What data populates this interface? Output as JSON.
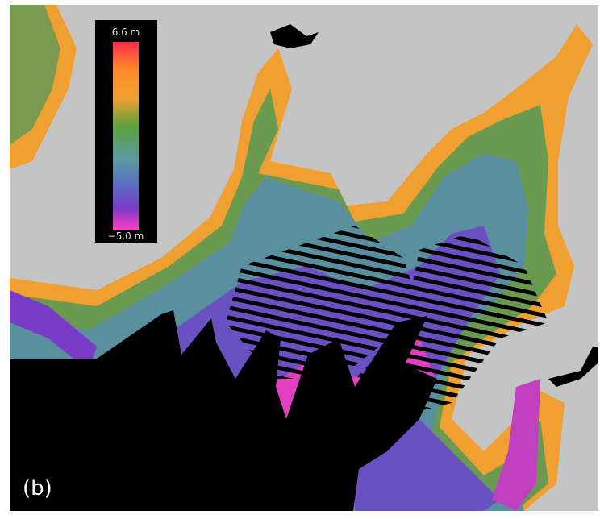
{
  "colorbar": {
    "max_label": "6.6 m",
    "min_label": "−5.0 m"
  },
  "panel_label": "(b)"
}
